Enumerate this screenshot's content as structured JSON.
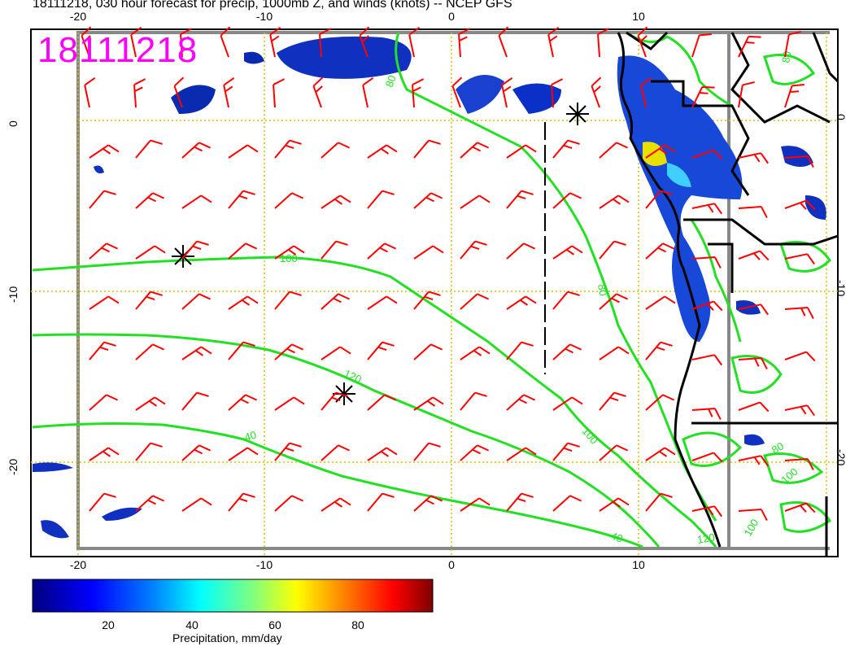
{
  "title": "18111218, 030 hour forecast for precip, 1000mb Z, and winds (knots) -- NCEP GFS",
  "stamp": "18111218",
  "lon_labels": [
    "-20",
    "-10",
    "0",
    "10"
  ],
  "lat_labels": [
    "0",
    "-10",
    "-20"
  ],
  "colorbar": {
    "label": "Precipitation, mm/day",
    "ticks": [
      "20",
      "40",
      "60",
      "80"
    ],
    "colors": [
      "#00007f",
      "#0000ff",
      "#0080ff",
      "#00ffff",
      "#80ff80",
      "#ffff00",
      "#ff8000",
      "#ff0000",
      "#7f0000"
    ]
  },
  "contour_labels": [
    "80",
    "100",
    "120",
    "40",
    "100",
    "80",
    "40",
    "120",
    "100",
    "80",
    "80",
    "100"
  ],
  "colors": {
    "wind_barbs": "#ff0000",
    "contours": "#00e000",
    "grid": "#d4c000",
    "coast": "#000000",
    "stamp": "#ff00ff"
  }
}
